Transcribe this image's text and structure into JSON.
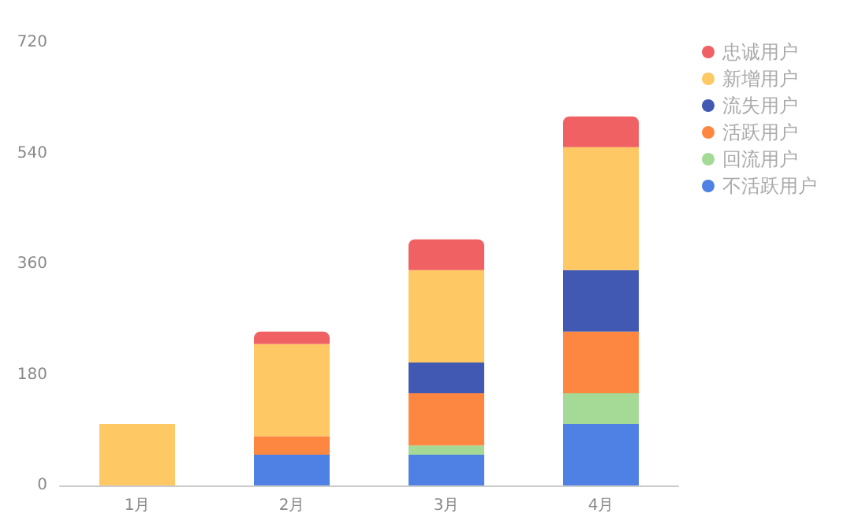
{
  "chart_data": {
    "type": "bar",
    "stacked": true,
    "categories": [
      "1月",
      "2月",
      "3月",
      "4月"
    ],
    "series": [
      {
        "name": "不活跃用户",
        "color": "#4e81e3",
        "values": [
          0,
          50,
          50,
          100
        ]
      },
      {
        "name": "回流用户",
        "color": "#a5d996",
        "values": [
          0,
          0,
          15,
          50
        ]
      },
      {
        "name": "活跃用户",
        "color": "#fd8741",
        "values": [
          0,
          30,
          85,
          100
        ]
      },
      {
        "name": "流失用户",
        "color": "#4159b2",
        "values": [
          0,
          0,
          50,
          100
        ]
      },
      {
        "name": "新增用户",
        "color": "#fec864",
        "values": [
          100,
          150,
          150,
          200
        ]
      },
      {
        "name": "忠诚用户",
        "color": "#ef6163",
        "values": [
          0,
          20,
          50,
          50
        ]
      }
    ],
    "ylim": [
      0,
      720
    ],
    "yticks": [
      0,
      180,
      360,
      540,
      720
    ],
    "grid": false,
    "legend": "top right"
  }
}
